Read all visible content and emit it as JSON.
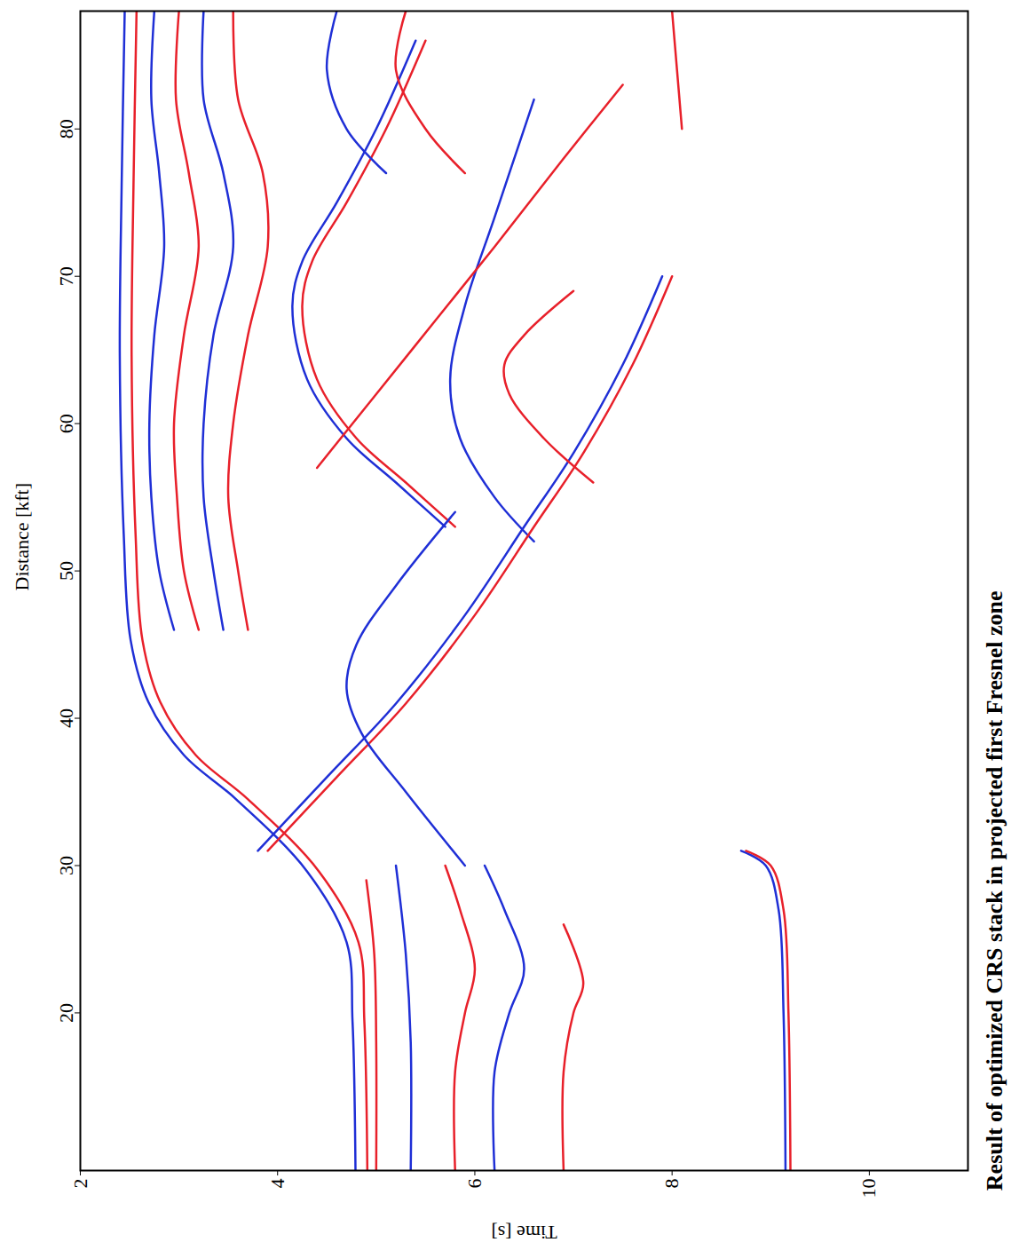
{
  "chart_data": {
    "type": "line",
    "title": "Result of optimized CRS stack in projected first Fresnel zone",
    "x_label": "Time [s]",
    "y_label": "Distance [kft]",
    "xlim": [
      2,
      11
    ],
    "ylim": [
      9.3,
      88
    ],
    "xticks": [
      2,
      4,
      6,
      8,
      10
    ],
    "yticks": [
      20,
      30,
      40,
      50,
      60,
      70,
      80
    ],
    "grid": false,
    "series": [
      {
        "color": "#1f2fd6",
        "x": [
          4.79,
          4.76,
          4.7,
          4.3,
          3.58,
          3.05,
          2.69,
          2.51,
          2.44,
          2.4,
          2.42,
          2.45
        ],
        "values": [
          9.3,
          19.4,
          24.8,
          29.6,
          34.5,
          37.5,
          41.1,
          45.3,
          52.5,
          64.6,
          76.6,
          88
        ]
      },
      {
        "color": "#e8202a",
        "x": [
          4.91,
          4.88,
          4.82,
          4.42,
          3.7,
          3.17,
          2.81,
          2.63,
          2.56,
          2.52,
          2.54,
          2.57
        ],
        "values": [
          9.3,
          19.4,
          24.8,
          29.6,
          34.5,
          37.5,
          41.1,
          45.3,
          52.5,
          64.6,
          76.6,
          88
        ]
      },
      {
        "color": "#1f2fd6",
        "x": [
          2.75,
          2.72,
          2.8,
          2.85,
          2.75,
          2.7,
          2.72,
          2.8,
          2.95
        ],
        "values": [
          88,
          82,
          77,
          72,
          66,
          60,
          55,
          50,
          46
        ]
      },
      {
        "color": "#e8202a",
        "x": [
          3.0,
          2.97,
          3.1,
          3.2,
          3.05,
          2.95,
          2.98,
          3.05,
          3.2
        ],
        "values": [
          88,
          82,
          77,
          72,
          66,
          60,
          55,
          50,
          46
        ]
      },
      {
        "color": "#1f2fd6",
        "x": [
          3.25,
          3.25,
          3.45,
          3.55,
          3.35,
          3.25,
          3.25,
          3.35,
          3.45
        ],
        "values": [
          88,
          82,
          77,
          72,
          66,
          60,
          55,
          50,
          46
        ]
      },
      {
        "color": "#e8202a",
        "x": [
          3.55,
          3.6,
          3.85,
          3.9,
          3.7,
          3.55,
          3.5,
          3.6,
          3.7
        ],
        "values": [
          88,
          82,
          77,
          72,
          66,
          60,
          55,
          50,
          46
        ]
      },
      {
        "color": "#1f2fd6",
        "x": [
          5.4,
          5.0,
          4.6,
          4.25,
          4.15,
          4.3,
          4.7,
          5.2,
          5.7
        ],
        "values": [
          86,
          80,
          75,
          71,
          68,
          63,
          59,
          56,
          53
        ]
      },
      {
        "color": "#e8202a",
        "x": [
          5.5,
          5.1,
          4.7,
          4.35,
          4.25,
          4.4,
          4.8,
          5.3,
          5.8
        ],
        "values": [
          86,
          80,
          75,
          71,
          68,
          63,
          59,
          56,
          53
        ]
      },
      {
        "color": "#1f2fd6",
        "x": [
          6.6,
          6.2,
          5.9,
          5.75,
          5.85,
          6.2,
          6.6
        ],
        "values": [
          82,
          74,
          68,
          63,
          59,
          55,
          52
        ]
      },
      {
        "color": "#1f2fd6",
        "x": [
          3.8,
          4.5,
          5.2,
          5.9,
          6.5,
          7.0,
          7.5,
          7.9
        ],
        "values": [
          31,
          36,
          41,
          47,
          53,
          58,
          64,
          70
        ]
      },
      {
        "color": "#e8202a",
        "x": [
          3.9,
          4.6,
          5.3,
          6.0,
          6.6,
          7.1,
          7.6,
          8.0
        ],
        "values": [
          31,
          36,
          41,
          47,
          53,
          58,
          64,
          70
        ]
      },
      {
        "color": "#e8202a",
        "x": [
          4.4,
          5.0,
          5.6,
          6.2,
          6.9,
          7.5
        ],
        "values": [
          57,
          62,
          67,
          72,
          78,
          83
        ]
      },
      {
        "color": "#1f2fd6",
        "x": [
          5.9,
          5.3,
          4.85,
          4.7,
          4.8,
          5.2,
          5.8
        ],
        "values": [
          30,
          35,
          39,
          42,
          45,
          49,
          54
        ]
      },
      {
        "color": "#e8202a",
        "x": [
          7.2,
          6.7,
          6.35,
          6.3,
          6.5,
          7.0
        ],
        "values": [
          56,
          59,
          62,
          64,
          66,
          69
        ]
      },
      {
        "color": "#1f2fd6",
        "x": [
          4.6,
          4.5,
          4.7,
          5.1
        ],
        "values": [
          88,
          84,
          80,
          77
        ]
      },
      {
        "color": "#e8202a",
        "x": [
          5.3,
          5.2,
          5.5,
          5.9
        ],
        "values": [
          88,
          84,
          80,
          77
        ]
      },
      {
        "color": "#e8202a",
        "x": [
          5.0,
          5.0,
          4.98,
          4.9
        ],
        "values": [
          9.3,
          18,
          24,
          29
        ]
      },
      {
        "color": "#1f2fd6",
        "x": [
          5.35,
          5.35,
          5.3,
          5.2
        ],
        "values": [
          9.3,
          18,
          24,
          30
        ]
      },
      {
        "color": "#e8202a",
        "x": [
          5.8,
          5.8,
          5.9,
          6.0,
          5.85,
          5.7
        ],
        "values": [
          9.3,
          16,
          20,
          23,
          27,
          30
        ]
      },
      {
        "color": "#1f2fd6",
        "x": [
          6.2,
          6.2,
          6.35,
          6.5,
          6.3,
          6.1
        ],
        "values": [
          9.3,
          16,
          20,
          23,
          27,
          30
        ]
      },
      {
        "color": "#e8202a",
        "x": [
          6.9,
          6.9,
          7.0,
          7.1,
          6.9
        ],
        "values": [
          9.3,
          16,
          20,
          22,
          26
        ]
      },
      {
        "color": "#1f2fd6",
        "x": [
          9.15,
          9.13,
          9.08,
          8.95,
          8.7
        ],
        "values": [
          9.3,
          20,
          27,
          30,
          31
        ]
      },
      {
        "color": "#e8202a",
        "x": [
          9.2,
          9.18,
          9.13,
          9.0,
          8.75
        ],
        "values": [
          9.3,
          20,
          27,
          30,
          31
        ]
      },
      {
        "color": "#e8202a",
        "x": [
          8.0,
          8.05,
          8.1
        ],
        "values": [
          88,
          84,
          80
        ]
      }
    ]
  }
}
